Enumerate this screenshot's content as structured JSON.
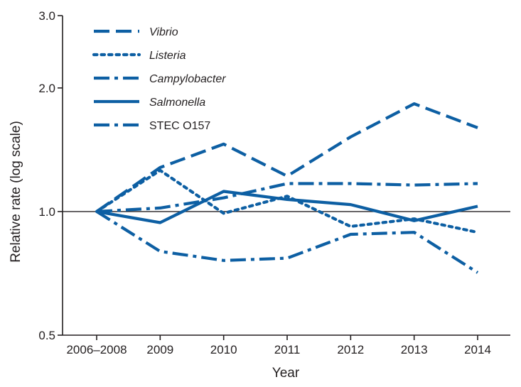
{
  "chart_data": {
    "type": "line",
    "title": "",
    "xlabel": "Year",
    "ylabel": "Relative rate (log scale)",
    "y_scale": "log",
    "ylim": [
      0.5,
      3.0
    ],
    "yticks": [
      0.5,
      1.0,
      2.0,
      3.0
    ],
    "ytick_labels": [
      "0.5",
      "1.0",
      "2.0",
      "3.0"
    ],
    "reference_line": 1.0,
    "categories": [
      "2006–2008",
      "2009",
      "2010",
      "2011",
      "2012",
      "2013",
      "2014"
    ],
    "line_color": "#0d5fa3",
    "legend_position": "top-left",
    "series": [
      {
        "name": "Vibrio",
        "italic": true,
        "dash": "long-dash",
        "values": [
          1.0,
          1.28,
          1.46,
          1.22,
          1.52,
          1.83,
          1.6
        ]
      },
      {
        "name": "Listeria",
        "italic": true,
        "dash": "dotted",
        "values": [
          1.0,
          1.26,
          0.99,
          1.09,
          0.92,
          0.96,
          0.89
        ]
      },
      {
        "name": "Campylobacter",
        "italic": true,
        "dash": "dash-dot",
        "values": [
          1.0,
          1.02,
          1.08,
          1.17,
          1.17,
          1.16,
          1.17
        ]
      },
      {
        "name": "Salmonella",
        "italic": true,
        "dash": "solid",
        "values": [
          1.0,
          0.94,
          1.12,
          1.07,
          1.04,
          0.95,
          1.03
        ]
      },
      {
        "name": "STEC O157",
        "italic": false,
        "dash": "dash-dot",
        "values": [
          1.0,
          0.8,
          0.76,
          0.77,
          0.88,
          0.89,
          0.71
        ]
      }
    ]
  }
}
